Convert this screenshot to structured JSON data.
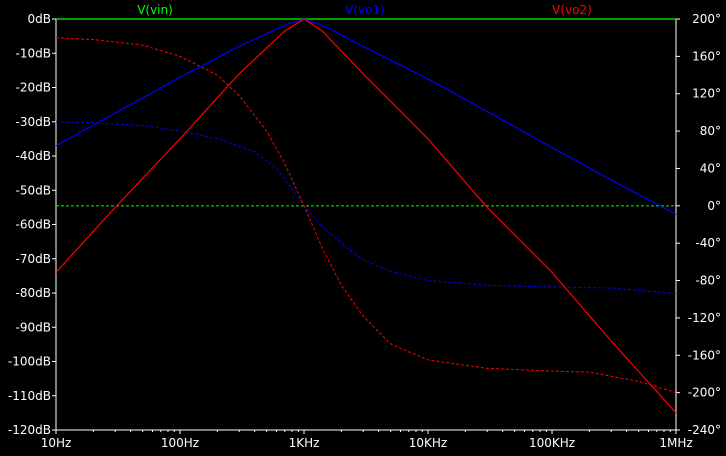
{
  "chart_data": {
    "type": "line",
    "x_scale": "log",
    "xlim": [
      10,
      1000000
    ],
    "x_ticks": [
      {
        "value": 10,
        "label": "10Hz"
      },
      {
        "value": 100,
        "label": "100Hz"
      },
      {
        "value": 1000,
        "label": "1KHz"
      },
      {
        "value": 10000,
        "label": "10KHz"
      },
      {
        "value": 100000,
        "label": "100KHz"
      },
      {
        "value": 1000000,
        "label": "1MHz"
      }
    ],
    "y_left": {
      "unit": "dB",
      "lim": [
        -120,
        0
      ],
      "ticks": [
        {
          "value": 0,
          "label": "0dB"
        },
        {
          "value": -10,
          "label": "-10dB"
        },
        {
          "value": -20,
          "label": "-20dB"
        },
        {
          "value": -30,
          "label": "-30dB"
        },
        {
          "value": -40,
          "label": "-40dB"
        },
        {
          "value": -50,
          "label": "-50dB"
        },
        {
          "value": -60,
          "label": "-60dB"
        },
        {
          "value": -70,
          "label": "-70dB"
        },
        {
          "value": -80,
          "label": "-80dB"
        },
        {
          "value": -90,
          "label": "-90dB"
        },
        {
          "value": -100,
          "label": "-100dB"
        },
        {
          "value": -110,
          "label": "-110dB"
        },
        {
          "value": -120,
          "label": "-120dB"
        }
      ]
    },
    "y_right": {
      "unit": "degrees",
      "lim": [
        -240,
        200
      ],
      "ticks": [
        {
          "value": 200,
          "label": "200°"
        },
        {
          "value": 160,
          "label": "160°"
        },
        {
          "value": 120,
          "label": "120°"
        },
        {
          "value": 80,
          "label": "80°"
        },
        {
          "value": 40,
          "label": "40°"
        },
        {
          "value": 0,
          "label": "0°"
        },
        {
          "value": -40,
          "label": "-40°"
        },
        {
          "value": -80,
          "label": "-80°"
        },
        {
          "value": -120,
          "label": "-120°"
        },
        {
          "value": -160,
          "label": "-160°"
        },
        {
          "value": -200,
          "label": "-200°"
        },
        {
          "value": -240,
          "label": "-240°"
        }
      ]
    },
    "grid": false,
    "legend_placement": "top",
    "series": [
      {
        "name": "V(vin)",
        "color": "#00ff00",
        "magnitude_db": {
          "x": [
            10,
            1000000
          ],
          "y": [
            0,
            0
          ]
        },
        "phase_deg": {
          "x": [
            10,
            1000000
          ],
          "y": [
            0,
            0
          ]
        }
      },
      {
        "name": "V(vo1)",
        "color": "#0000ff",
        "magnitude_db": {
          "x": [
            10,
            30,
            100,
            300,
            700,
            1000,
            1400,
            3000,
            10000,
            30000,
            100000,
            300000,
            1000000
          ],
          "y": [
            -37,
            -27.5,
            -17,
            -8,
            -1.8,
            0,
            -1.8,
            -8,
            -17.5,
            -27,
            -37.5,
            -47,
            -57
          ]
        },
        "phase_deg": {
          "x": [
            10,
            20,
            50,
            100,
            200,
            400,
            600,
            800,
            1000,
            1300,
            2000,
            3000,
            5000,
            10000,
            30000,
            100000,
            300000,
            1000000
          ],
          "y": [
            90,
            89,
            86,
            80,
            72,
            58,
            40,
            18,
            0,
            -18,
            -40,
            -58,
            -70,
            -80,
            -85,
            -87,
            -88,
            -94
          ]
        }
      },
      {
        "name": "V(vo2)",
        "color": "#ff0000",
        "magnitude_db": {
          "x": [
            10,
            30,
            100,
            300,
            700,
            1000,
            1400,
            3000,
            10000,
            30000,
            100000,
            300000,
            1000000
          ],
          "y": [
            -74,
            -55,
            -35,
            -16,
            -3.5,
            0,
            -3.5,
            -16,
            -35,
            -55,
            -74,
            -94,
            -115
          ]
        },
        "phase_deg": {
          "x": [
            10,
            20,
            50,
            100,
            200,
            300,
            500,
            700,
            1000,
            1400,
            2000,
            3000,
            5000,
            10000,
            30000,
            100000,
            200000,
            500000,
            1000000
          ],
          "y": [
            180,
            178,
            172,
            160,
            140,
            118,
            80,
            45,
            0,
            -45,
            -85,
            -118,
            -148,
            -165,
            -174,
            -177,
            -178,
            -188,
            -200
          ]
        }
      }
    ]
  }
}
